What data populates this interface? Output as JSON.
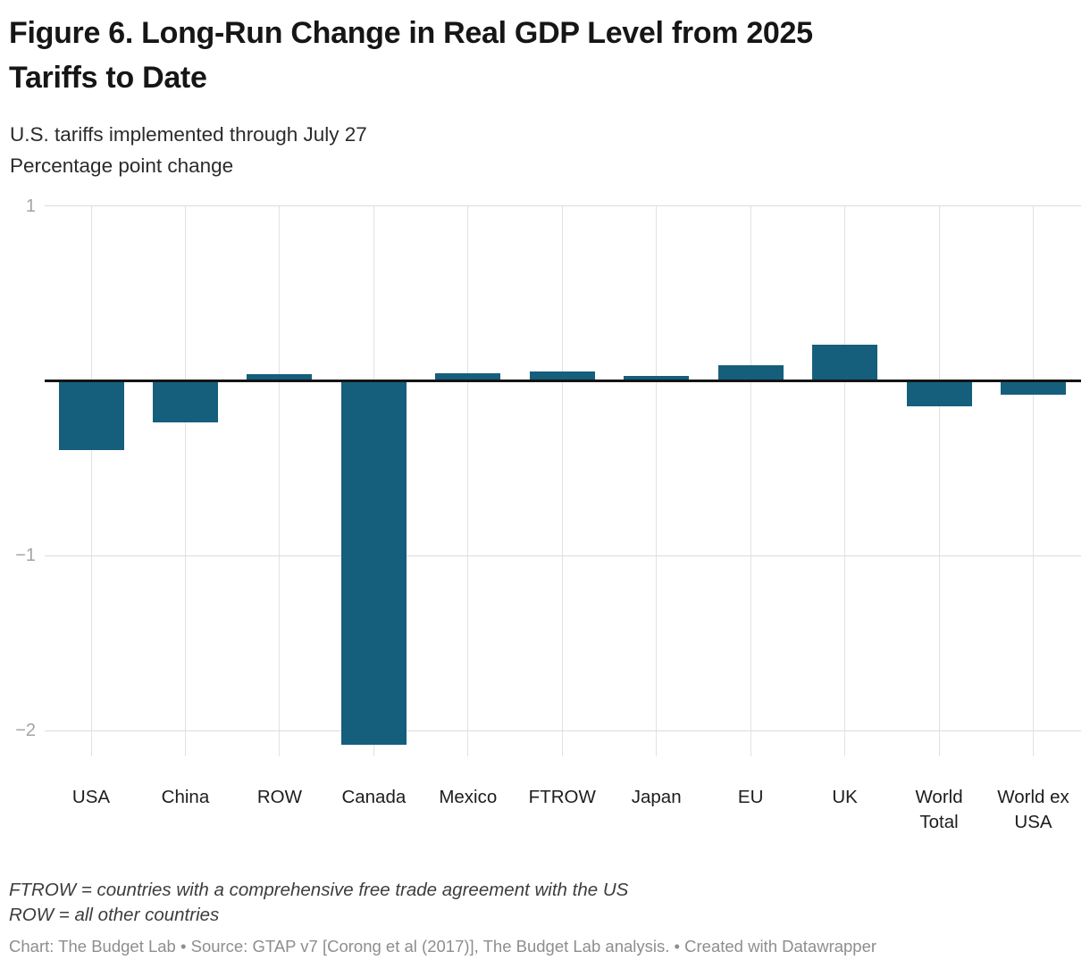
{
  "page": {
    "title": "Figure 6. Long-Run Change in Real GDP Level from 2025\nTariffs to Date",
    "subtitle_line1": "U.S. tariffs implemented through July 27",
    "subtitle_line2": "Percentage point change",
    "footnote_line1": "FTROW = countries with a comprehensive free trade agreement with the US",
    "footnote_line2": "ROW = all other countries",
    "credit": "Chart: The Budget Lab • Source: GTAP v7 [Corong et al (2017)], The Budget Lab analysis. • Created with Datawrapper"
  },
  "colors": {
    "bar": "#155f7d",
    "zero_line": "#141414",
    "gridline_h": "#dcdcdc",
    "gridline_v": "#e2e2e2",
    "tick_label": "#a3a3a3",
    "category_label": "#1d1d1d",
    "title": "#161617"
  },
  "chart_data": {
    "type": "bar",
    "title": "Figure 6. Long-Run Change in Real GDP Level from 2025 Tariffs to Date",
    "subtitle": "U.S. tariffs implemented through July 27",
    "ylabel": "Percentage point change",
    "xlabel": "",
    "categories": [
      "USA",
      "China",
      "ROW",
      "Canada",
      "Mexico",
      "FTROW",
      "Japan",
      "EU",
      "UK",
      "World Total",
      "World ex USA"
    ],
    "values": [
      -0.39,
      -0.23,
      0.03,
      -2.07,
      0.035,
      0.045,
      0.02,
      0.08,
      0.2,
      -0.14,
      -0.07
    ],
    "bar_color": "#155f7d",
    "baseline": 0,
    "y_ticks": [
      {
        "value": 1,
        "label": "1"
      },
      {
        "value": -1,
        "label": "−1"
      },
      {
        "value": -2,
        "label": "−2"
      }
    ],
    "ylim": [
      -2.15,
      1.0
    ],
    "grid": "horizontal and vertical gridlines, black zero baseline",
    "legend": "none"
  }
}
